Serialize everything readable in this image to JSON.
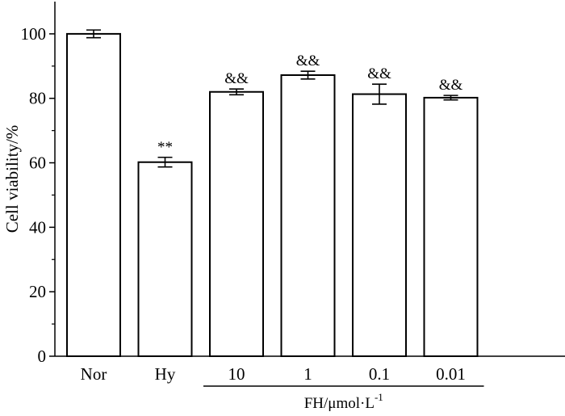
{
  "chart_data": {
    "type": "bar",
    "categories": [
      "Nor",
      "Hy",
      "10",
      "1",
      "0.1",
      "0.01"
    ],
    "values": [
      100,
      60.2,
      82,
      87.2,
      81.3,
      80.2
    ],
    "errors": [
      1.2,
      1.5,
      0.9,
      1.2,
      3.1,
      0.7
    ],
    "annotations": [
      "",
      "**",
      "&&",
      "&&",
      "&&",
      "&&"
    ],
    "ylabel": "Cell viability/%",
    "xlabel": "",
    "group_label": {
      "text": "FH/μmol·L",
      "superscript": "-1",
      "from_category": 2,
      "to_category": 5
    },
    "ylim": [
      0,
      110
    ],
    "yticks": [
      0,
      20,
      40,
      60,
      80,
      100
    ],
    "ytick_labels": [
      "0",
      "20",
      "40",
      "60",
      "80",
      "100"
    ],
    "grid": false,
    "legend": "none"
  }
}
